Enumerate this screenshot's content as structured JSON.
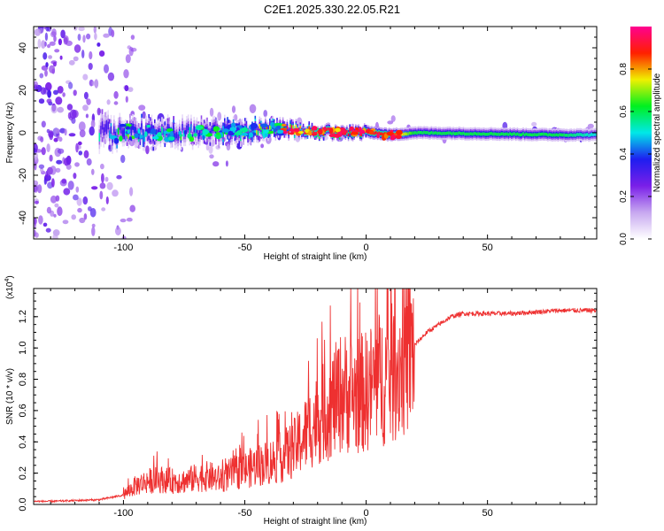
{
  "title": "C2E1.2025.330.22.05.R21",
  "chart_data": [
    {
      "type": "heatmap",
      "name": "spectrogram",
      "xlabel": "Height of straight line (km)",
      "ylabel": "Frequency (Hz)",
      "xlim": [
        -137,
        95
      ],
      "ylim": [
        -50,
        50
      ],
      "xticks": [
        -100,
        -50,
        0,
        50
      ],
      "yticks": [
        -40,
        -20,
        0,
        20,
        40
      ],
      "colorbar": {
        "label": "Normalized spectral amplitude",
        "ticks": [
          0.0,
          0.2,
          0.4,
          0.6,
          0.8
        ],
        "tick_labels": [
          "0.0",
          "0.2",
          "0.4",
          "0.6",
          "0.8"
        ],
        "colors": [
          "#ffffff",
          "#c7a8f0",
          "#7a1fe8",
          "#1e1ef0",
          "#00e8e8",
          "#00f020",
          "#f0f000",
          "#ff2000",
          "#ff0090"
        ]
      },
      "band": [
        {
          "x": -110,
          "freq": 0,
          "width": 8,
          "amp": 0.3
        },
        {
          "x": -100,
          "freq": 0,
          "width": 6,
          "amp": 0.35
        },
        {
          "x": -75,
          "freq": 0,
          "width": 6,
          "amp": 0.35
        },
        {
          "x": -50,
          "freq": 1,
          "width": 5,
          "amp": 0.4
        },
        {
          "x": -35,
          "freq": 2,
          "width": 4,
          "amp": 0.6
        },
        {
          "x": -25,
          "freq": 1,
          "width": 3,
          "amp": 0.85
        },
        {
          "x": -10,
          "freq": 0,
          "width": 3,
          "amp": 0.9
        },
        {
          "x": 0,
          "freq": 0.5,
          "width": 3,
          "amp": 0.9
        },
        {
          "x": 10,
          "freq": -1,
          "width": 3,
          "amp": 0.9
        },
        {
          "x": 20,
          "freq": 0,
          "width": 3,
          "amp": 0.6
        },
        {
          "x": 50,
          "freq": -0.5,
          "width": 3,
          "amp": 0.6
        },
        {
          "x": 80,
          "freq": -1,
          "width": 3,
          "amp": 0.6
        },
        {
          "x": 95,
          "freq": -1,
          "width": 3,
          "amp": 0.5
        }
      ]
    },
    {
      "type": "line",
      "name": "snr",
      "xlabel": "Height of straight line (km)",
      "ylabel": "SNR (10 * v/v)",
      "scale_label": "(x10",
      "scale_exponent": "4",
      "xlim": [
        -137,
        95
      ],
      "ylim": [
        0,
        1.38
      ],
      "xticks": [
        -100,
        -50,
        0,
        50
      ],
      "yticks": [
        0.0,
        0.2,
        0.4,
        0.6,
        0.8,
        1.0,
        1.2
      ],
      "ytick_labels": [
        "0.0",
        "0.2",
        "0.4",
        "0.6",
        "0.8",
        "1.0",
        "1.2"
      ],
      "color": "#ee3030",
      "series": [
        {
          "name": "SNR",
          "x": [
            -137,
            -130,
            -120,
            -110,
            -105,
            -100,
            -95,
            -90,
            -85,
            -80,
            -75,
            -70,
            -65,
            -60,
            -55,
            -50,
            -45,
            -40,
            -35,
            -30,
            -25,
            -20,
            -15,
            -10,
            -5,
            0,
            5,
            10,
            15,
            20,
            25,
            30,
            35,
            40,
            50,
            60,
            70,
            80,
            90,
            95
          ],
          "y": [
            0.02,
            0.02,
            0.025,
            0.03,
            0.045,
            0.06,
            0.12,
            0.15,
            0.16,
            0.15,
            0.15,
            0.17,
            0.18,
            0.16,
            0.2,
            0.22,
            0.25,
            0.27,
            0.3,
            0.35,
            0.45,
            0.55,
            0.62,
            0.72,
            0.7,
            0.72,
            0.8,
            0.82,
            0.92,
            1.02,
            1.1,
            1.15,
            1.2,
            1.22,
            1.22,
            1.22,
            1.23,
            1.24,
            1.24,
            1.24
          ]
        }
      ]
    }
  ]
}
